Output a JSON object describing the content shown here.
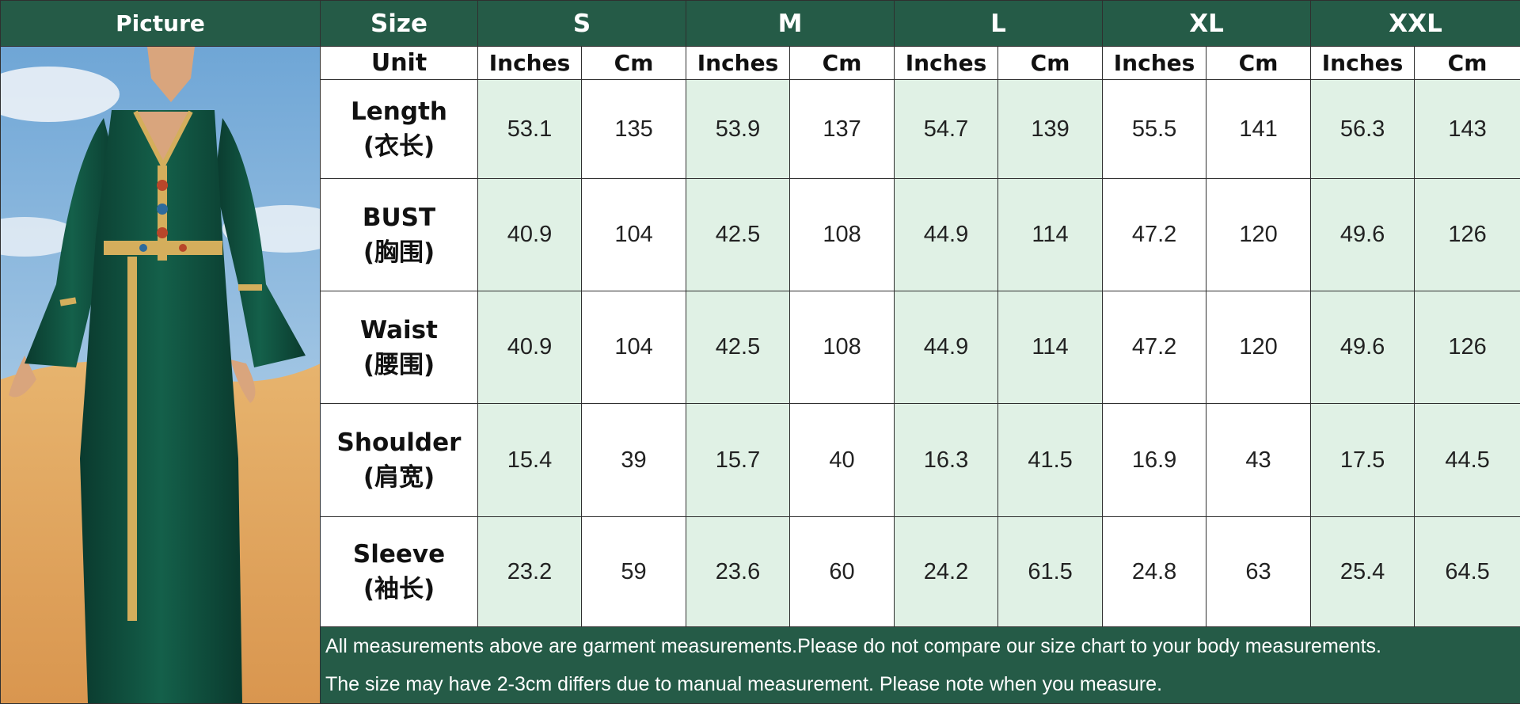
{
  "header": {
    "picture_label": "Picture",
    "size_label": "Size",
    "sizes": [
      "S",
      "M",
      "L",
      "XL",
      "XXL"
    ]
  },
  "unit_row": {
    "label": "Unit",
    "inches": "Inches",
    "cm": "Cm"
  },
  "rows": [
    {
      "name": "Length",
      "cn": "(衣长)",
      "values": [
        "53.1",
        "135",
        "53.9",
        "137",
        "54.7",
        "139",
        "55.5",
        "141",
        "56.3",
        "143"
      ]
    },
    {
      "name": "BUST",
      "cn": "(胸围)",
      "values": [
        "40.9",
        "104",
        "42.5",
        "108",
        "44.9",
        "114",
        "47.2",
        "120",
        "49.6",
        "126"
      ]
    },
    {
      "name": "Waist",
      "cn": "(腰围)",
      "values": [
        "40.9",
        "104",
        "42.5",
        "108",
        "44.9",
        "114",
        "47.2",
        "120",
        "49.6",
        "126"
      ]
    },
    {
      "name": "Shoulder",
      "cn": "(肩宽)",
      "values": [
        "15.4",
        "39",
        "15.7",
        "40",
        "16.3",
        "41.5",
        "16.9",
        "43",
        "17.5",
        "44.5"
      ]
    },
    {
      "name": "Sleeve",
      "cn": "(袖长)",
      "values": [
        "23.2",
        "59",
        "23.6",
        "60",
        "24.2",
        "61.5",
        "24.8",
        "63",
        "25.4",
        "64.5"
      ]
    }
  ],
  "notes": [
    "All measurements above are garment measurements.Please do not compare our size chart to your body measurements.",
    "The size may have 2-3cm differs due to manual measurement. Please note when you measure."
  ],
  "colors": {
    "header_green": "#255b47",
    "light_green_cell": "#e0f1e5",
    "dress_green": "#0f4a3a",
    "gold_trim": "#d4ae5c"
  }
}
